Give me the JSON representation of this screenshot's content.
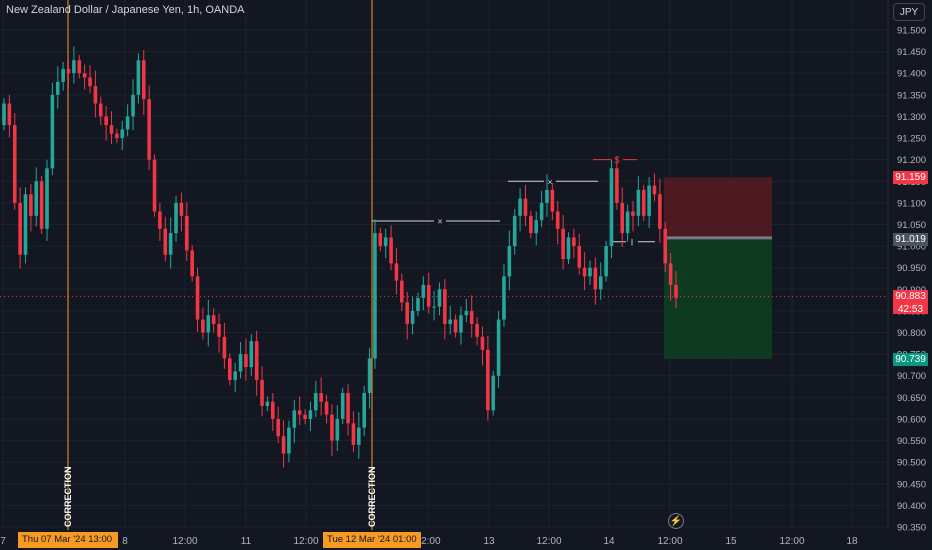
{
  "header": {
    "title": "New Zealand Dollar / Japanese Yen, 1h, OANDA",
    "currency": "JPY"
  },
  "colors": {
    "up": "#26a69a",
    "down": "#f23645",
    "marker": "#f59a23",
    "stop_zone": "#4e1a22",
    "target_zone": "#0f3a22"
  },
  "price_axis": {
    "ticks": [
      "91.500",
      "91.450",
      "91.400",
      "91.350",
      "91.300",
      "91.250",
      "91.200",
      "91.150",
      "91.100",
      "91.050",
      "91.000",
      "90.950",
      "90.900",
      "90.850",
      "90.800",
      "90.750",
      "90.700",
      "90.650",
      "90.600",
      "90.550",
      "90.500",
      "90.450",
      "90.400",
      "90.350"
    ]
  },
  "price_labels": {
    "stop": "91.159",
    "entry": "91.019",
    "current": "90.883",
    "countdown": "42:53",
    "target": "90.739"
  },
  "time_axis": {
    "ticks": [
      "7",
      "8",
      "12:00",
      "11",
      "12:00",
      "12:00",
      "13",
      "12:00",
      "14",
      "12:00",
      "15",
      "12:00",
      "18"
    ]
  },
  "vertical_markers": [
    {
      "label": "CORRECTION",
      "tag": "Thu 07 Mar '24   13:00"
    },
    {
      "label": "CORRECTION",
      "tag": "Tue 12 Mar '24   01:00"
    }
  ],
  "annotations": {
    "level1_mark": "×",
    "level2_mark": "×",
    "sweep_mark": "$",
    "entry_mark": "I"
  },
  "chart_data": {
    "type": "candlestick",
    "symbol": "NZDJPY",
    "interval": "1h",
    "ylim": [
      90.35,
      91.52
    ],
    "levels": [
      {
        "price": 91.058,
        "mark": "×"
      },
      {
        "price": 91.15,
        "mark": "×"
      },
      {
        "price": 91.2,
        "mark": "$"
      },
      {
        "price": 91.01,
        "mark": "I"
      }
    ],
    "position": {
      "entry": 91.019,
      "stop": 91.159,
      "target": 90.739,
      "side": "short"
    },
    "current_price": 90.883,
    "closes": [
      91.33,
      91.28,
      91.1,
      90.98,
      91.12,
      91.07,
      91.15,
      91.04,
      91.18,
      91.35,
      91.38,
      91.41,
      91.4,
      91.43,
      91.4,
      91.39,
      91.37,
      91.33,
      91.3,
      91.28,
      91.26,
      91.25,
      91.27,
      91.3,
      91.35,
      91.43,
      91.34,
      91.2,
      91.08,
      91.04,
      90.98,
      91.03,
      91.1,
      91.07,
      90.99,
      90.93,
      90.83,
      90.8,
      90.84,
      90.82,
      90.79,
      90.74,
      90.69,
      90.71,
      90.75,
      90.72,
      90.78,
      90.69,
      90.63,
      90.64,
      90.6,
      90.56,
      90.52,
      90.58,
      90.62,
      90.61,
      90.6,
      90.62,
      90.66,
      90.64,
      90.61,
      90.55,
      90.6,
      90.66,
      90.59,
      90.54,
      90.58,
      90.66,
      90.74,
      91.03,
      91.0,
      91.02,
      90.96,
      90.92,
      90.87,
      90.82,
      90.85,
      90.88,
      90.91,
      90.86,
      90.86,
      90.9,
      90.82,
      90.83,
      90.8,
      90.84,
      90.85,
      90.82,
      90.79,
      90.76,
      90.62,
      90.7,
      90.83,
      90.93,
      91.0,
      91.07,
      91.11,
      91.07,
      91.03,
      91.06,
      91.1,
      91.13,
      91.08,
      91.04,
      90.97,
      91.02,
      91.0,
      90.95,
      90.93,
      90.95,
      90.9,
      90.93,
      91.0,
      91.18,
      91.1,
      91.03,
      91.08,
      91.07,
      91.13,
      91.07,
      91.14,
      91.12,
      91.04,
      90.96,
      90.91,
      90.88
    ]
  }
}
